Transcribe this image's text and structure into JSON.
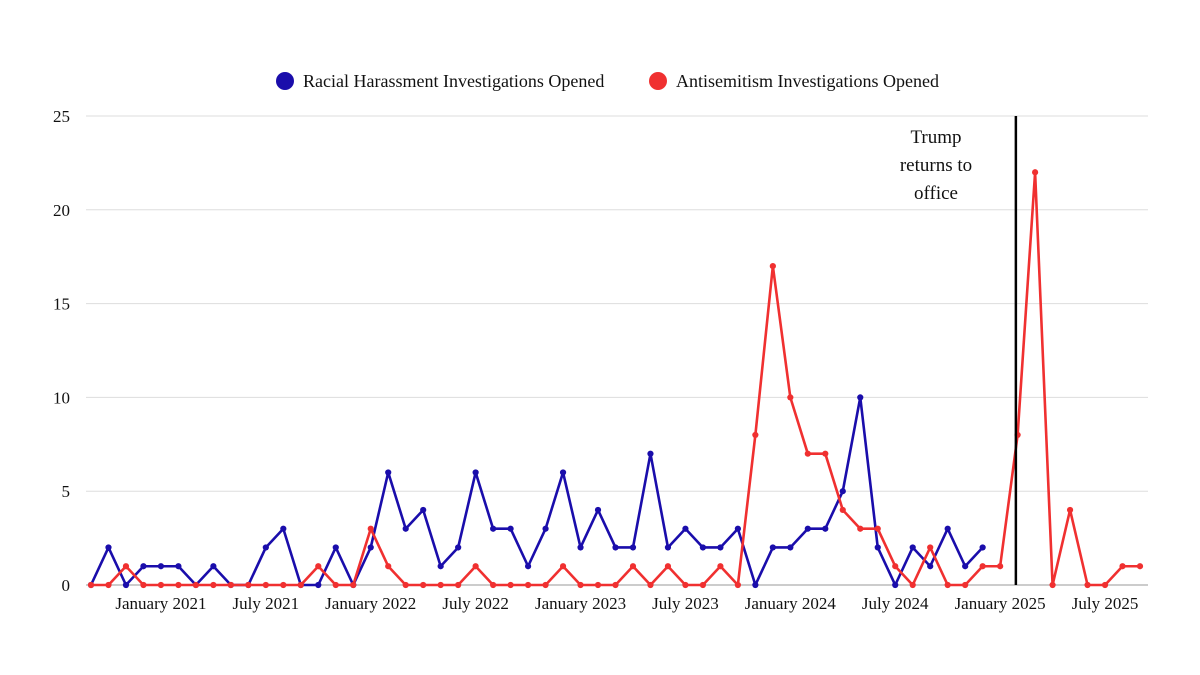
{
  "chart_data": {
    "type": "line",
    "title": "",
    "xlabel": "",
    "ylabel": "",
    "ylim": [
      0,
      25
    ],
    "yticks": [
      0,
      5,
      10,
      15,
      20,
      25
    ],
    "grid": true,
    "legend_position": "top-center",
    "x_months": [
      "2020-10",
      "2020-11",
      "2020-12",
      "2021-01",
      "2021-02",
      "2021-03",
      "2021-04",
      "2021-05",
      "2021-06",
      "2021-07",
      "2021-08",
      "2021-09",
      "2021-10",
      "2021-11",
      "2021-12",
      "2022-01",
      "2022-02",
      "2022-03",
      "2022-04",
      "2022-05",
      "2022-06",
      "2022-07",
      "2022-08",
      "2022-09",
      "2022-10",
      "2022-11",
      "2022-12",
      "2023-01",
      "2023-02",
      "2023-03",
      "2023-04",
      "2023-05",
      "2023-06",
      "2023-07",
      "2023-08",
      "2023-09",
      "2023-10",
      "2023-11",
      "2023-12",
      "2024-01",
      "2024-02",
      "2024-03",
      "2024-04",
      "2024-05",
      "2024-06",
      "2024-07",
      "2024-08",
      "2024-09",
      "2024-10",
      "2024-11",
      "2024-12",
      "2025-01",
      "2025-02",
      "2025-03",
      "2025-04",
      "2025-05",
      "2025-06",
      "2025-07",
      "2025-08",
      "2025-09",
      "2025-10"
    ],
    "x_tick_labels": [
      {
        "label": "January 2021",
        "month_index": 4
      },
      {
        "label": "July 2021",
        "month_index": 10
      },
      {
        "label": "January 2022",
        "month_index": 16
      },
      {
        "label": "July 2022",
        "month_index": 22
      },
      {
        "label": "January 2023",
        "month_index": 28
      },
      {
        "label": "July 2023",
        "month_index": 34
      },
      {
        "label": "January 2024",
        "month_index": 40
      },
      {
        "label": "July 2024",
        "month_index": 46
      },
      {
        "label": "January 2025",
        "month_index": 52
      },
      {
        "label": "July 2025",
        "month_index": 58
      }
    ],
    "series": [
      {
        "name": "Racial Harassment Investigations Opened",
        "color": "#1a0dab",
        "values": [
          0,
          2,
          0,
          1,
          1,
          1,
          0,
          1,
          0,
          0,
          2,
          3,
          0,
          0,
          2,
          0,
          2,
          6,
          3,
          4,
          1,
          2,
          6,
          3,
          3,
          1,
          3,
          6,
          2,
          4,
          2,
          2,
          7,
          2,
          3,
          2,
          2,
          3,
          0,
          2,
          2,
          3,
          3,
          5,
          10,
          2,
          0,
          2,
          1,
          3,
          1,
          2,
          null,
          null,
          null,
          null,
          null,
          null,
          null,
          null,
          null
        ]
      },
      {
        "name": "Antisemitism Investigations Opened",
        "color": "#f03030",
        "values": [
          0,
          0,
          1,
          0,
          0,
          0,
          0,
          0,
          0,
          0,
          0,
          0,
          0,
          1,
          0,
          0,
          3,
          1,
          0,
          0,
          0,
          0,
          1,
          0,
          0,
          0,
          0,
          1,
          0,
          0,
          0,
          1,
          0,
          1,
          0,
          0,
          1,
          0,
          8,
          17,
          10,
          7,
          7,
          4,
          3,
          3,
          1,
          0,
          2,
          0,
          0,
          1,
          1,
          8,
          22,
          0,
          4,
          0,
          0,
          1,
          1
        ]
      }
    ],
    "annotations": [
      {
        "text_lines": [
          "Trump",
          "returns to",
          "office"
        ],
        "month_index": 52.9,
        "type": "vertical-line"
      }
    ]
  }
}
